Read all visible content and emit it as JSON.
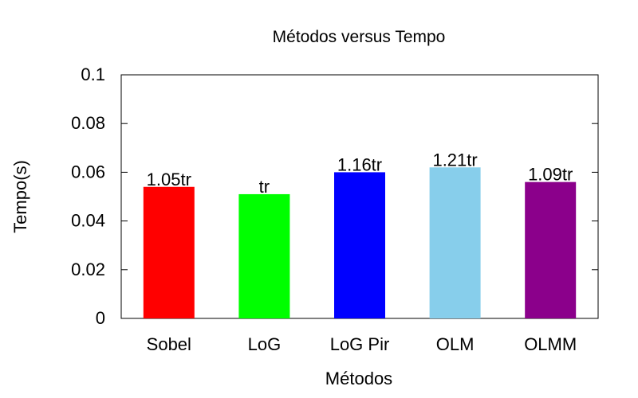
{
  "chart_data": {
    "type": "bar",
    "title": "Métodos versus Tempo",
    "xlabel": "Métodos",
    "ylabel": "Tempo(s)",
    "ylim": [
      0,
      0.1
    ],
    "yticks": [
      "0",
      "0.02",
      "0.04",
      "0.06",
      "0.08",
      "0.1"
    ],
    "ytick_values": [
      0,
      0.02,
      0.04,
      0.06,
      0.08,
      0.1
    ],
    "grid": false,
    "legend": "none",
    "categories": [
      "Sobel",
      "LoG",
      "LoG Pir",
      "OLM",
      "OLMM"
    ],
    "values": [
      0.054,
      0.051,
      0.06,
      0.062,
      0.056
    ],
    "bar_labels": [
      "1.05tr",
      "tr",
      "1.16tr",
      "1.21tr",
      "1.09tr"
    ],
    "colors": [
      "#ff0000",
      "#00ff00",
      "#0000ff",
      "#87ceeb",
      "#8b008b"
    ]
  }
}
